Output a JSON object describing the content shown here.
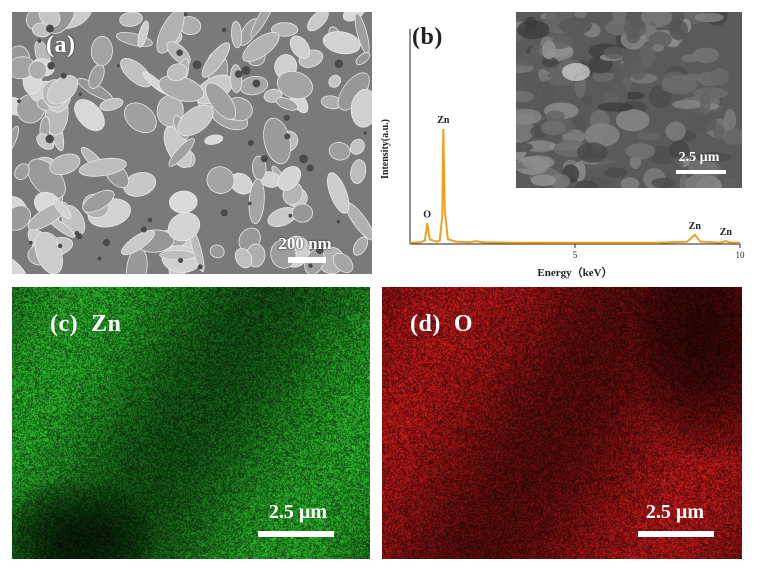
{
  "panels": {
    "a": {
      "label": "(a)",
      "scale_bar": "200 nm"
    },
    "b": {
      "label": "(b)",
      "inset_scale_bar": "2.5 µm"
    },
    "c": {
      "label": "(c)  Zn",
      "scale_bar": "2.5 µm"
    },
    "d": {
      "label": "(d)  O",
      "scale_bar": "2.5 µm"
    }
  },
  "colors": {
    "eds_spectrum": "#f0a020",
    "zn_map": "#22c822",
    "o_map": "#d81818"
  },
  "chart_data": {
    "type": "line",
    "title": "",
    "xlabel": "Energy（keV）",
    "ylabel": "Intensity(a.u.)",
    "xlim": [
      0,
      10
    ],
    "x_ticks": [
      {
        "value": 5,
        "label": "5"
      },
      {
        "value": 10,
        "label": "10"
      }
    ],
    "series": [
      {
        "points": [
          [
            0.0,
            1
          ],
          [
            0.3,
            1.5
          ],
          [
            0.45,
            3
          ],
          [
            0.52,
            18
          ],
          [
            0.6,
            4
          ],
          [
            0.8,
            2
          ],
          [
            0.9,
            3
          ],
          [
            0.98,
            25
          ],
          [
            1.01,
            100
          ],
          [
            1.05,
            30
          ],
          [
            1.15,
            4
          ],
          [
            1.4,
            2
          ],
          [
            1.8,
            1.5
          ],
          [
            2.0,
            2.5
          ],
          [
            2.2,
            1.5
          ],
          [
            3.0,
            1.2
          ],
          [
            5.0,
            1
          ],
          [
            7.5,
            1
          ],
          [
            8.4,
            2
          ],
          [
            8.63,
            8
          ],
          [
            8.8,
            2
          ],
          [
            9.4,
            1.2
          ],
          [
            9.57,
            2.5
          ],
          [
            9.7,
            1.2
          ],
          [
            10.0,
            1
          ]
        ]
      }
    ],
    "peak_labels": [
      {
        "x": 0.52,
        "label": "O"
      },
      {
        "x": 1.01,
        "label": "Zn"
      },
      {
        "x": 8.63,
        "label": "Zn"
      },
      {
        "x": 9.57,
        "label": "Zn"
      }
    ]
  }
}
